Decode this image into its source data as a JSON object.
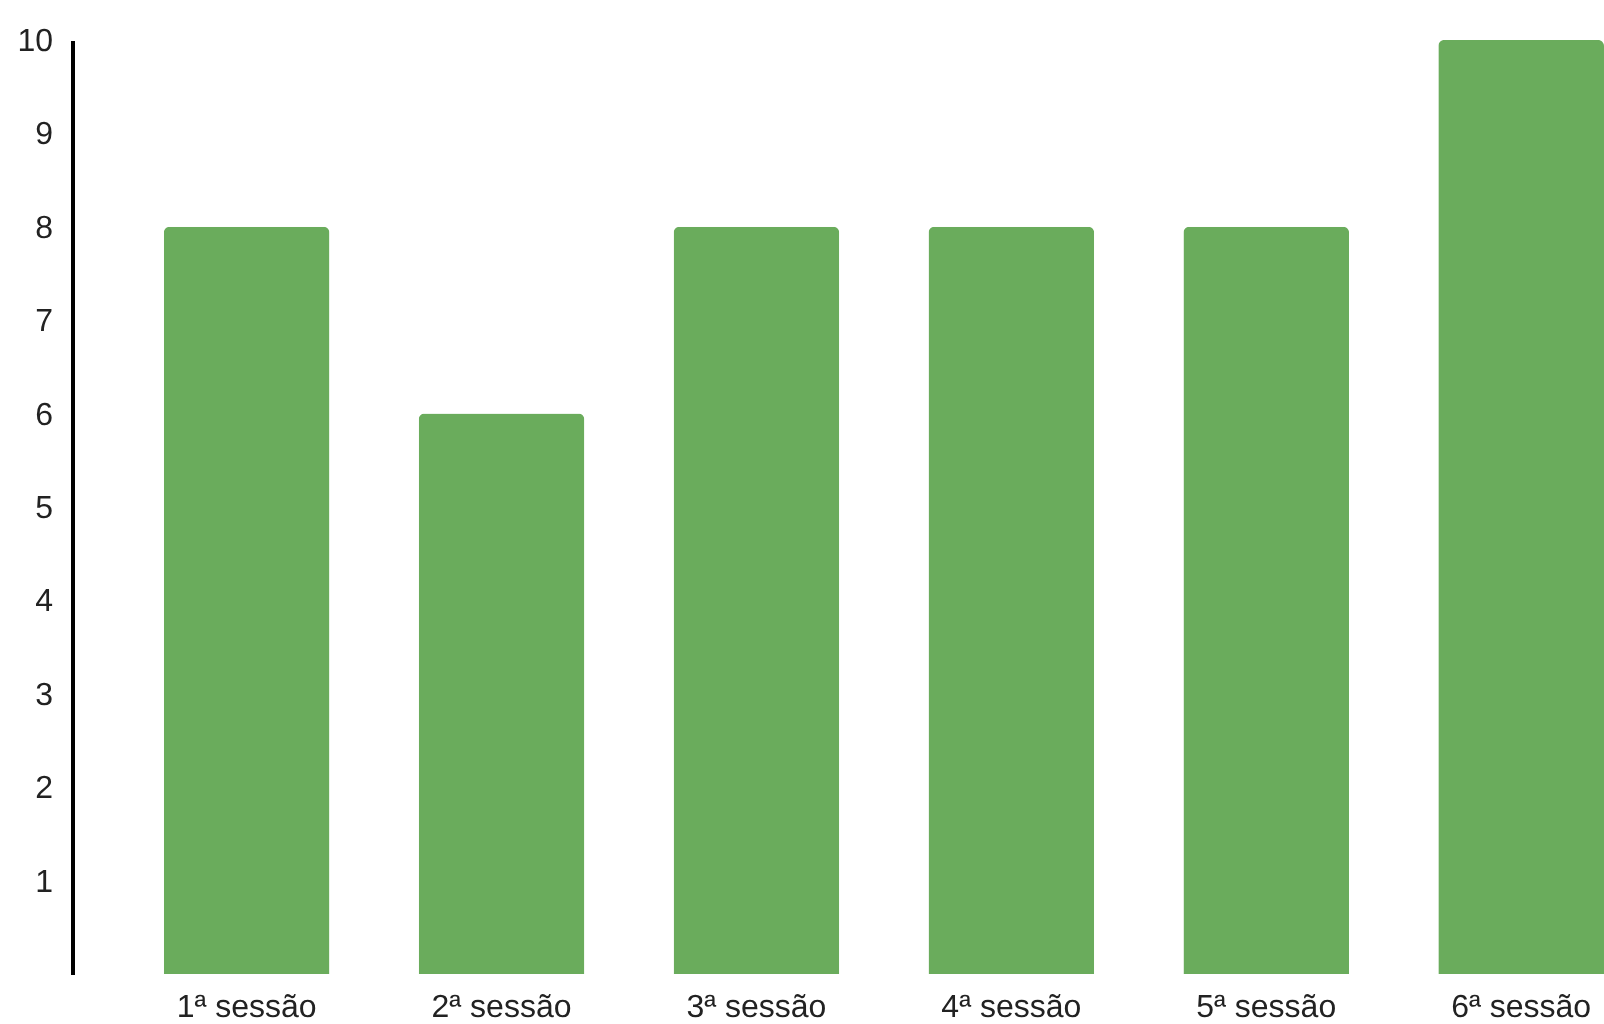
{
  "chart_data": {
    "type": "bar",
    "categories": [
      "1ª sessão",
      "2ª sessão",
      "3ª sessão",
      "4ª sessão",
      "5ª sessão",
      "6ª sessão"
    ],
    "values": [
      8,
      6,
      8,
      8,
      8,
      10
    ],
    "color": "#6aac5c",
    "ylim": [
      0,
      10
    ],
    "yticks": [
      1,
      2,
      3,
      4,
      5,
      6,
      7,
      8,
      9,
      10
    ],
    "grid": false
  }
}
